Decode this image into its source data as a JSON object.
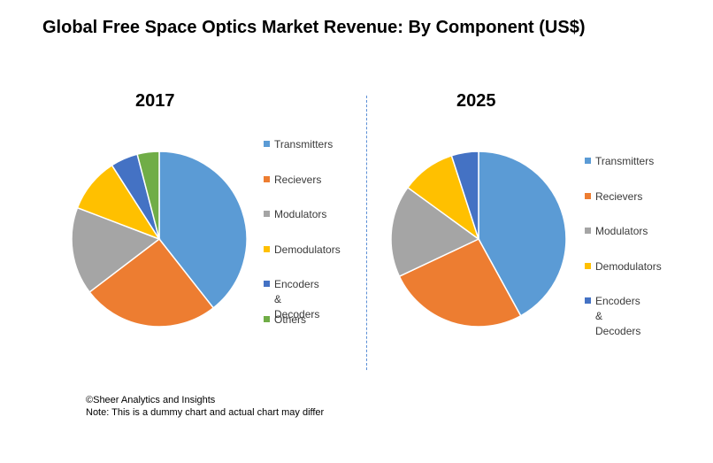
{
  "title": "Global Free Space Optics Market Revenue: By Component (US$)",
  "footer": {
    "credit": "©Sheer Analytics and Insights",
    "note": "Note: This is a dummy chart and actual chart may differ"
  },
  "colors": {
    "Transmitters": "#5b9bd5",
    "Recievers": "#ed7d31",
    "Modulators": "#a5a5a5",
    "Demodulators": "#ffc000",
    "Encoders & Decoders": "#4472c4",
    "Others": "#70ad47"
  },
  "chart_data": [
    {
      "type": "pie",
      "title": "2017",
      "legend_position": "right",
      "categories": [
        "Transmitters",
        "Recievers",
        "Modulators",
        "Demodulators",
        "Encoders & Decoders",
        "Others"
      ],
      "values": [
        39,
        25,
        16,
        10,
        5,
        4
      ]
    },
    {
      "type": "pie",
      "title": "2025",
      "legend_position": "right",
      "categories": [
        "Transmitters",
        "Recievers",
        "Modulators",
        "Demodulators",
        "Encoders & Decoders"
      ],
      "values": [
        42,
        26,
        17,
        10,
        5
      ]
    }
  ]
}
